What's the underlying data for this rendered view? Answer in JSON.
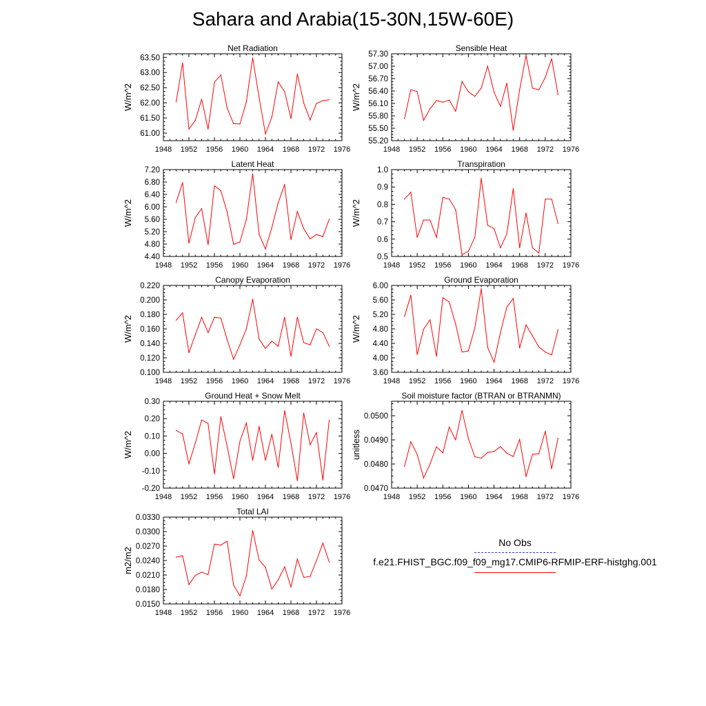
{
  "title": "Sahara and Arabia(15-30N,15W-60E)",
  "colors": {
    "model_line": "#ff0000",
    "obs_line": "#1f3fbf",
    "axis": "#000000"
  },
  "legend": {
    "obs_label": "No Obs",
    "model_label": "f.e21.FHIST_BGC.f09_f09_mg17.CMIP6-RFMIP-ERF-histghg.001"
  },
  "chart_data": [
    {
      "type": "line",
      "title": "Net Radiation",
      "ylabel": "W/m^2",
      "xlabel": "",
      "xlim": [
        1948,
        1976
      ],
      "ylim": [
        60.75,
        63.62
      ],
      "xticks": [
        1948,
        1952,
        1956,
        1960,
        1964,
        1968,
        1972,
        1976
      ],
      "xtick_labels": [
        "1948",
        "1952",
        "1956",
        "1960",
        "1964",
        "1968",
        "1972",
        "1976"
      ],
      "yticks": [
        61.0,
        61.5,
        62.0,
        62.5,
        63.0,
        63.5
      ],
      "ytick_labels": [
        "61.00",
        "61.50",
        "62.00",
        "62.50",
        "63.00",
        "63.50"
      ],
      "series": [
        {
          "name": "model",
          "x": [
            1950,
            1951,
            1952,
            1953,
            1954,
            1955,
            1956,
            1957,
            1958,
            1959,
            1960,
            1961,
            1962,
            1963,
            1964,
            1965,
            1966,
            1967,
            1968,
            1969,
            1970,
            1971,
            1972,
            1973,
            1974
          ],
          "values": [
            62.03,
            63.32,
            61.13,
            61.42,
            62.12,
            61.13,
            62.68,
            62.92,
            61.82,
            61.31,
            61.3,
            62.03,
            63.48,
            62.18,
            60.97,
            61.53,
            62.69,
            62.37,
            61.48,
            62.95,
            62.0,
            61.43,
            61.98,
            62.07,
            62.1
          ]
        }
      ]
    },
    {
      "type": "line",
      "title": "Sensible Heat",
      "ylabel": "W/m^2",
      "xlabel": "",
      "xlim": [
        1948,
        1976
      ],
      "ylim": [
        55.2,
        57.3
      ],
      "xticks": [
        1948,
        1952,
        1956,
        1960,
        1964,
        1968,
        1972,
        1976
      ],
      "xtick_labels": [
        "1948",
        "1952",
        "1956",
        "1960",
        "1964",
        "1968",
        "1972",
        "1976"
      ],
      "yticks": [
        55.2,
        55.5,
        55.8,
        56.1,
        56.4,
        56.7,
        57.0,
        57.3
      ],
      "ytick_labels": [
        "55.20",
        "55.50",
        "55.80",
        "56.10",
        "56.40",
        "56.70",
        "57.00",
        "57.30"
      ],
      "series": [
        {
          "name": "model",
          "x": [
            1950,
            1951,
            1952,
            1953,
            1954,
            1955,
            1956,
            1957,
            1958,
            1959,
            1960,
            1961,
            1962,
            1963,
            1964,
            1965,
            1966,
            1967,
            1968,
            1969,
            1970,
            1971,
            1972,
            1973,
            1974
          ],
          "values": [
            55.73,
            56.43,
            56.39,
            55.69,
            55.97,
            56.17,
            56.13,
            56.18,
            55.91,
            56.63,
            56.38,
            56.27,
            56.47,
            57.0,
            56.37,
            56.03,
            56.59,
            55.45,
            56.43,
            57.26,
            56.47,
            56.43,
            56.73,
            57.18,
            56.31
          ]
        }
      ]
    },
    {
      "type": "line",
      "title": "Latent Heat",
      "ylabel": "W/m^2",
      "xlabel": "",
      "xlim": [
        1948,
        1976
      ],
      "ylim": [
        4.4,
        7.2
      ],
      "xticks": [
        1948,
        1952,
        1956,
        1960,
        1964,
        1968,
        1972,
        1976
      ],
      "xtick_labels": [
        "1948",
        "1952",
        "1956",
        "1960",
        "1964",
        "1968",
        "1972",
        "1976"
      ],
      "yticks": [
        4.4,
        4.8,
        5.2,
        5.6,
        6.0,
        6.4,
        6.8,
        7.2
      ],
      "ytick_labels": [
        "4.40",
        "4.80",
        "5.20",
        "5.60",
        "6.00",
        "6.40",
        "6.80",
        "7.20"
      ],
      "series": [
        {
          "name": "model",
          "x": [
            1950,
            1951,
            1952,
            1953,
            1954,
            1955,
            1956,
            1957,
            1958,
            1959,
            1960,
            1961,
            1962,
            1963,
            1964,
            1965,
            1966,
            1967,
            1968,
            1969,
            1970,
            1971,
            1972,
            1973,
            1974
          ],
          "values": [
            6.14,
            6.78,
            4.83,
            5.66,
            5.94,
            4.78,
            6.68,
            6.52,
            5.83,
            4.79,
            4.87,
            5.59,
            7.06,
            5.12,
            4.64,
            5.33,
            6.13,
            6.72,
            4.94,
            5.85,
            5.3,
            4.97,
            5.11,
            5.04,
            5.6
          ]
        }
      ]
    },
    {
      "type": "line",
      "title": "Transpiration",
      "ylabel": "W/m^2",
      "xlabel": "",
      "xlim": [
        1948,
        1976
      ],
      "ylim": [
        0.5,
        1.0
      ],
      "xticks": [
        1948,
        1952,
        1956,
        1960,
        1964,
        1968,
        1972,
        1976
      ],
      "xtick_labels": [
        "1948",
        "1952",
        "1956",
        "1960",
        "1964",
        "1968",
        "1972",
        "1976"
      ],
      "yticks": [
        0.5,
        0.6,
        0.7,
        0.8,
        0.9,
        1.0
      ],
      "ytick_labels": [
        "0.5",
        "0.6",
        "0.7",
        "0.8",
        "0.9",
        "1.0"
      ],
      "series": [
        {
          "name": "model",
          "x": [
            1950,
            1951,
            1952,
            1953,
            1954,
            1955,
            1956,
            1957,
            1958,
            1959,
            1960,
            1961,
            1962,
            1963,
            1964,
            1965,
            1966,
            1967,
            1968,
            1969,
            1970,
            1971,
            1972,
            1973,
            1974
          ],
          "values": [
            0.83,
            0.87,
            0.61,
            0.71,
            0.71,
            0.61,
            0.84,
            0.83,
            0.77,
            0.51,
            0.53,
            0.61,
            0.95,
            0.68,
            0.66,
            0.55,
            0.63,
            0.89,
            0.55,
            0.75,
            0.55,
            0.52,
            0.83,
            0.83,
            0.69
          ]
        }
      ]
    },
    {
      "type": "line",
      "title": "Canopy Evaporation",
      "ylabel": "W/m^2",
      "xlabel": "",
      "xlim": [
        1948,
        1976
      ],
      "ylim": [
        0.1,
        0.22
      ],
      "xticks": [
        1948,
        1952,
        1956,
        1960,
        1964,
        1968,
        1972,
        1976
      ],
      "xtick_labels": [
        "1948",
        "1952",
        "1956",
        "1960",
        "1964",
        "1968",
        "1972",
        "1976"
      ],
      "yticks": [
        0.1,
        0.12,
        0.14,
        0.16,
        0.18,
        0.2,
        0.22
      ],
      "ytick_labels": [
        "0.100",
        "0.120",
        "0.140",
        "0.160",
        "0.180",
        "0.200",
        "0.220"
      ],
      "series": [
        {
          "name": "model",
          "x": [
            1950,
            1951,
            1952,
            1953,
            1954,
            1955,
            1956,
            1957,
            1958,
            1959,
            1960,
            1961,
            1962,
            1963,
            1964,
            1965,
            1966,
            1967,
            1968,
            1969,
            1970,
            1971,
            1972,
            1973,
            1974
          ],
          "values": [
            0.172,
            0.182,
            0.127,
            0.152,
            0.176,
            0.155,
            0.176,
            0.175,
            0.145,
            0.118,
            0.138,
            0.16,
            0.201,
            0.146,
            0.133,
            0.143,
            0.136,
            0.176,
            0.122,
            0.176,
            0.141,
            0.138,
            0.16,
            0.155,
            0.136
          ]
        }
      ]
    },
    {
      "type": "line",
      "title": "Ground Evaporation",
      "ylabel": "W/m^2",
      "xlabel": "",
      "xlim": [
        1948,
        1976
      ],
      "ylim": [
        3.6,
        6.0
      ],
      "xticks": [
        1948,
        1952,
        1956,
        1960,
        1964,
        1968,
        1972,
        1976
      ],
      "xtick_labels": [
        "1948",
        "1952",
        "1956",
        "1960",
        "1964",
        "1968",
        "1972",
        "1976"
      ],
      "yticks": [
        3.6,
        4.0,
        4.4,
        4.8,
        5.2,
        5.6,
        6.0
      ],
      "ytick_labels": [
        "3.60",
        "4.00",
        "4.40",
        "4.80",
        "5.20",
        "5.60",
        "6.00"
      ],
      "series": [
        {
          "name": "model",
          "x": [
            1950,
            1951,
            1952,
            1953,
            1954,
            1955,
            1956,
            1957,
            1958,
            1959,
            1960,
            1961,
            1962,
            1963,
            1964,
            1965,
            1966,
            1967,
            1968,
            1969,
            1970,
            1971,
            1972,
            1973,
            1974
          ],
          "values": [
            5.14,
            5.73,
            4.09,
            4.79,
            5.05,
            4.04,
            5.66,
            5.54,
            4.93,
            4.16,
            4.19,
            4.83,
            5.91,
            4.29,
            3.88,
            4.7,
            5.4,
            5.64,
            4.27,
            4.91,
            4.61,
            4.3,
            4.16,
            4.08,
            4.78
          ]
        }
      ]
    },
    {
      "type": "line",
      "title": "Ground Heat + Snow Melt",
      "ylabel": "W/m^2",
      "xlabel": "",
      "xlim": [
        1948,
        1976
      ],
      "ylim": [
        -0.2,
        0.3
      ],
      "xticks": [
        1948,
        1952,
        1956,
        1960,
        1964,
        1968,
        1972,
        1976
      ],
      "xtick_labels": [
        "1948",
        "1952",
        "1956",
        "1960",
        "1964",
        "1968",
        "1972",
        "1976"
      ],
      "yticks": [
        -0.2,
        -0.1,
        0.0,
        0.1,
        0.2,
        0.3
      ],
      "ytick_labels": [
        "-0.20",
        "-0.10",
        "0.00",
        "0.10",
        "0.20",
        "0.30"
      ],
      "series": [
        {
          "name": "model",
          "x": [
            1950,
            1951,
            1952,
            1953,
            1954,
            1955,
            1956,
            1957,
            1958,
            1959,
            1960,
            1961,
            1962,
            1963,
            1964,
            1965,
            1966,
            1967,
            1968,
            1969,
            1970,
            1971,
            1972,
            1973,
            1974
          ],
          "values": [
            0.132,
            0.112,
            -0.06,
            0.06,
            0.192,
            0.172,
            -0.118,
            0.211,
            0.04,
            -0.146,
            0.07,
            0.175,
            -0.04,
            0.155,
            -0.04,
            0.11,
            -0.08,
            0.246,
            0.06,
            -0.157,
            0.232,
            0.05,
            0.12,
            -0.154,
            0.192
          ]
        }
      ]
    },
    {
      "type": "line",
      "title": "Soil moisture factor (BTRAN or BTRANMN)",
      "ylabel": "unitless",
      "xlabel": "",
      "xlim": [
        1948,
        1976
      ],
      "ylim": [
        0.047,
        0.0506
      ],
      "xticks": [
        1948,
        1952,
        1956,
        1960,
        1964,
        1968,
        1972,
        1976
      ],
      "xtick_labels": [
        "1948",
        "1952",
        "1956",
        "1960",
        "1964",
        "1968",
        "1972",
        "1976"
      ],
      "yticks": [
        0.047,
        0.048,
        0.049,
        0.05
      ],
      "ytick_labels": [
        "0.0470",
        "0.0480",
        "0.0490",
        "0.0500"
      ],
      "series": [
        {
          "name": "model",
          "x": [
            1950,
            1951,
            1952,
            1953,
            1954,
            1955,
            1956,
            1957,
            1958,
            1959,
            1960,
            1961,
            1962,
            1963,
            1964,
            1965,
            1966,
            1967,
            1968,
            1969,
            1970,
            1971,
            1972,
            1973,
            1974
          ],
          "values": [
            0.0479,
            0.04892,
            0.0484,
            0.04742,
            0.048,
            0.04871,
            0.04846,
            0.04953,
            0.049,
            0.05022,
            0.04905,
            0.0483,
            0.04824,
            0.04848,
            0.04852,
            0.04872,
            0.04845,
            0.04831,
            0.04902,
            0.04748,
            0.0484,
            0.04843,
            0.04936,
            0.0478,
            0.04907
          ]
        }
      ]
    },
    {
      "type": "line",
      "title": "Total LAI",
      "ylabel": "m2/m2",
      "xlabel": "",
      "xlim": [
        1948,
        1976
      ],
      "ylim": [
        0.015,
        0.033
      ],
      "xticks": [
        1948,
        1952,
        1956,
        1960,
        1964,
        1968,
        1972,
        1976
      ],
      "xtick_labels": [
        "1948",
        "1952",
        "1956",
        "1960",
        "1964",
        "1968",
        "1972",
        "1976"
      ],
      "yticks": [
        0.015,
        0.018,
        0.021,
        0.024,
        0.027,
        0.03,
        0.033
      ],
      "ytick_labels": [
        "0.0150",
        "0.0180",
        "0.0210",
        "0.0240",
        "0.0270",
        "0.0300",
        "0.0330"
      ],
      "series": [
        {
          "name": "model",
          "x": [
            1950,
            1951,
            1952,
            1953,
            1954,
            1955,
            1956,
            1957,
            1958,
            1959,
            1960,
            1961,
            1962,
            1963,
            1964,
            1965,
            1966,
            1967,
            1968,
            1969,
            1970,
            1971,
            1972,
            1973,
            1974
          ],
          "values": [
            0.0247,
            0.025,
            0.019,
            0.0209,
            0.0216,
            0.0211,
            0.0274,
            0.0272,
            0.028,
            0.0189,
            0.0167,
            0.0208,
            0.0302,
            0.0241,
            0.0226,
            0.0181,
            0.02,
            0.0227,
            0.0185,
            0.0243,
            0.0205,
            0.0207,
            0.024,
            0.0276,
            0.0237
          ]
        }
      ]
    }
  ]
}
